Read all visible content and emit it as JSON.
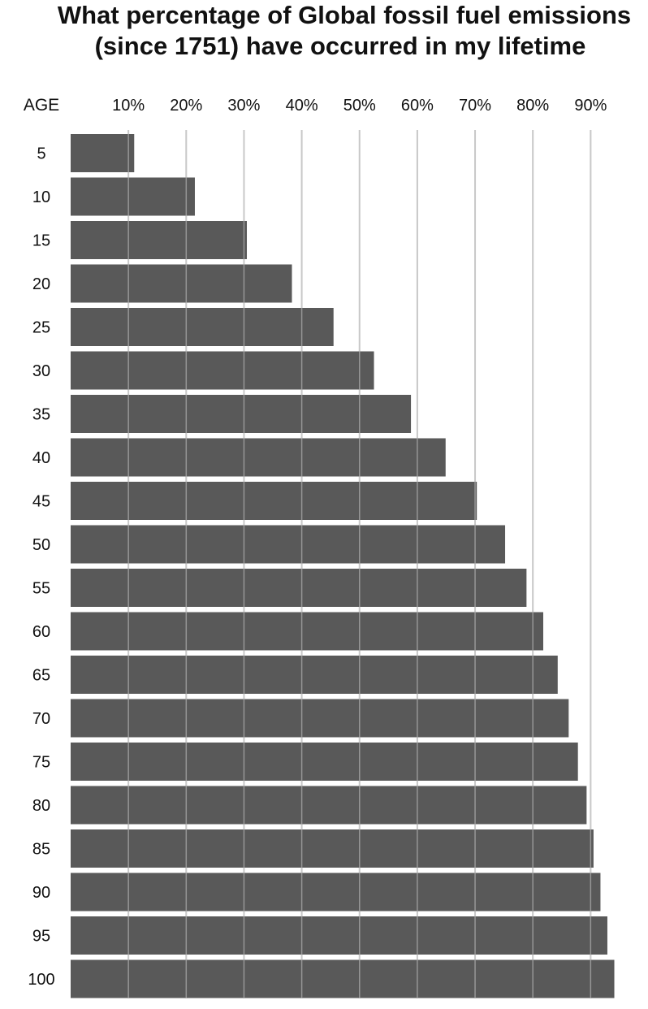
{
  "chart_data": {
    "type": "bar",
    "orientation": "horizontal",
    "title": "What percentage of Global fossil fuel emissions (since 1751) have occurred in my lifetime",
    "title_lines": [
      "What percentage of Global fossil fuel emissions",
      "(since 1751) have occurred in my lifetime"
    ],
    "category_axis_label": "AGE",
    "categories": [
      "5",
      "10",
      "15",
      "20",
      "25",
      "30",
      "35",
      "40",
      "45",
      "50",
      "55",
      "60",
      "65",
      "70",
      "75",
      "80",
      "85",
      "90",
      "95",
      "100"
    ],
    "values": [
      11,
      21.5,
      30.5,
      38.3,
      45.5,
      52.5,
      58.9,
      64.9,
      70.3,
      75.2,
      78.9,
      81.8,
      84.3,
      86.2,
      87.8,
      89.3,
      90.5,
      91.7,
      92.9,
      94.1
    ],
    "xticks": [
      "10%",
      "20%",
      "30%",
      "40%",
      "50%",
      "60%",
      "70%",
      "80%",
      "90%"
    ],
    "xtick_values": [
      10,
      20,
      30,
      40,
      50,
      60,
      70,
      80,
      90
    ],
    "xlim": [
      0,
      100
    ],
    "grid": true,
    "bar_color": "#595959",
    "grid_color": "#c8c8c8"
  }
}
